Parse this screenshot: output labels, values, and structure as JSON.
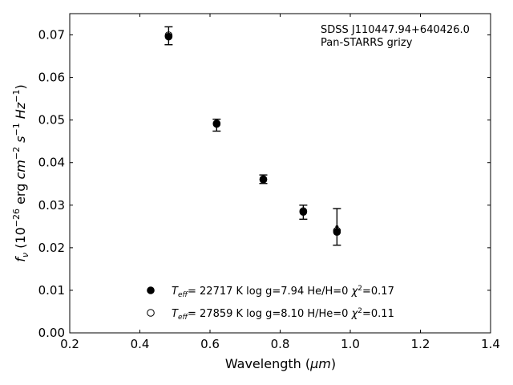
{
  "chart_data": {
    "type": "scatter",
    "title": "",
    "xlabel_main": "Wavelength (",
    "xlabel_unit": "μm",
    "xlabel_close": ")",
    "ylabel_var": "f",
    "ylabel_sub": "ν",
    "ylabel_paren_open": " (10",
    "ylabel_exp1": "−26",
    "ylabel_mid": " erg ",
    "ylabel_cm": "cm",
    "ylabel_exp2": "−2",
    "ylabel_s": " s",
    "ylabel_exp3": "−1",
    "ylabel_hz": " Hz",
    "ylabel_exp4": "−1",
    "ylabel_close": ")",
    "xlim": [
      0.2,
      1.4
    ],
    "ylim": [
      0.0,
      0.075
    ],
    "xticks": [
      "0.2",
      "0.4",
      "0.6",
      "0.8",
      "1.0",
      "1.2",
      "1.4"
    ],
    "yticks": [
      "0.00",
      "0.01",
      "0.02",
      "0.03",
      "0.04",
      "0.05",
      "0.06",
      "0.07"
    ],
    "annotation_lines": [
      "SDSS J110447.94+640426.0",
      "Pan-STARRS grizy"
    ],
    "observed": {
      "x": [
        0.482,
        0.619,
        0.752,
        0.866,
        0.962
      ],
      "y": [
        0.0698,
        0.0488,
        0.0361,
        0.0283,
        0.0249
      ],
      "yerr_low": [
        0.0677,
        0.0474,
        0.0351,
        0.0267,
        0.0206
      ],
      "yerr_high": [
        0.0719,
        0.0502,
        0.0371,
        0.03,
        0.0292
      ]
    },
    "series": [
      {
        "name": "He/H=0",
        "marker": "filled",
        "teff": "22717",
        "logg": "7.94",
        "comp": "He/H=0",
        "chi2": "0.17",
        "x": [
          0.482,
          0.619,
          0.752,
          0.866,
          0.962
        ],
        "y": [
          0.0696,
          0.0491,
          0.036,
          0.0284,
          0.0237
        ]
      },
      {
        "name": "H/He=0",
        "marker": "open",
        "teff": "27859",
        "logg": "8.10",
        "comp": "H/He=0",
        "chi2": "0.11",
        "x": [
          0.482,
          0.619,
          0.752,
          0.866,
          0.962
        ],
        "y": [
          0.0699,
          0.0492,
          0.0361,
          0.0286,
          0.024
        ]
      }
    ],
    "legend_position": "lower-center",
    "grid": false
  }
}
